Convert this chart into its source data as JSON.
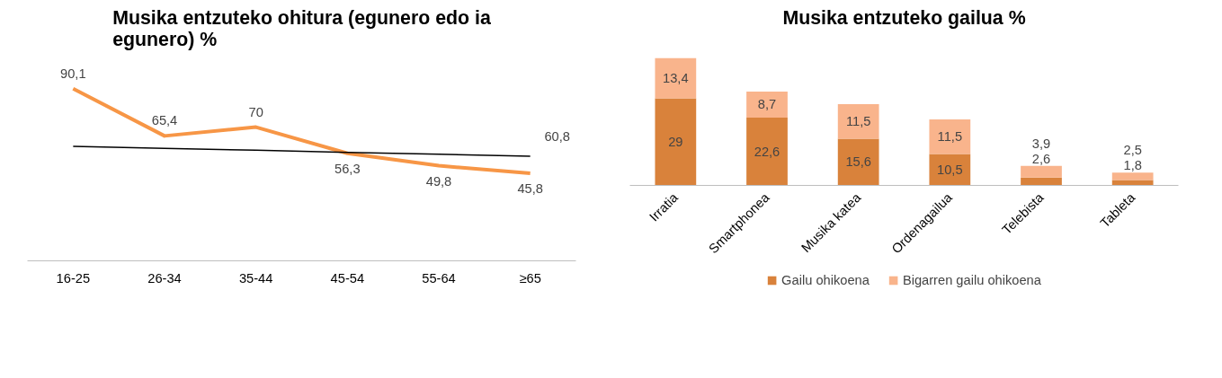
{
  "chart_data": [
    {
      "type": "line",
      "title": "Musika entzuteko ohitura (egunero edo ia egunero) %",
      "categories": [
        "16-25",
        "26-34",
        "35-44",
        "45-54",
        "55-64",
        "≥65"
      ],
      "series": [
        {
          "color": "#f79646",
          "values": [
            90.1,
            65.4,
            70,
            56.3,
            49.8,
            45.8
          ],
          "value_labels": [
            "90,1",
            "65,4",
            "70",
            "56,3",
            "49,8",
            "45,8"
          ]
        },
        {
          "color": "#000000",
          "values": [
            59.9,
            58.9,
            57.9,
            56.8,
            55.8,
            54.8
          ]
        }
      ],
      "annotations": [
        "60,8"
      ]
    },
    {
      "type": "bar",
      "title": "Musika entzuteko gailua %",
      "stacked": true,
      "legend": "bottom",
      "categories": [
        "Irratia",
        "Smartphonea",
        "Musika katea",
        "Ordenagailua",
        "Telebista",
        "Tableta"
      ],
      "series": [
        {
          "name": "Gailu ohikoena",
          "color": "#d9823b",
          "values": [
            29,
            22.6,
            15.6,
            10.5,
            2.6,
            1.8
          ],
          "value_labels": [
            "29",
            "22,6",
            "15,6",
            "10,5",
            "2,6",
            "1,8"
          ]
        },
        {
          "name": "Bigarren gailu ohikoena",
          "color": "#f9b48c",
          "values": [
            13.4,
            8.7,
            11.5,
            11.5,
            3.9,
            2.5
          ],
          "value_labels": [
            "13,4",
            "8,7",
            "11,5",
            "11,5",
            "3,9",
            "2,5"
          ]
        }
      ],
      "grid": false
    }
  ]
}
